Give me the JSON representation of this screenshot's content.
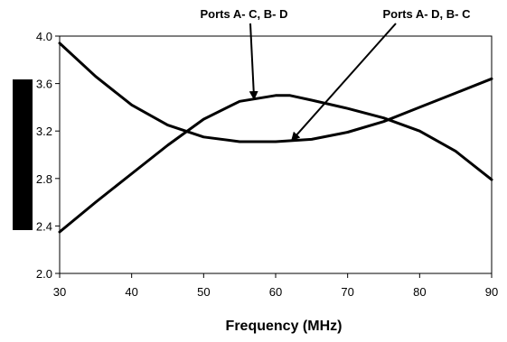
{
  "chart_data": {
    "type": "line",
    "title": "",
    "xlabel": "Frequency (MHz)",
    "ylabel": "",
    "xlim": [
      30,
      90
    ],
    "ylim": [
      2.0,
      4.0
    ],
    "x_ticks": [
      "30",
      "40",
      "50",
      "60",
      "70",
      "80",
      "90"
    ],
    "y_ticks": [
      "2.0",
      "2.4",
      "2.8",
      "3.2",
      "3.6",
      "4.0"
    ],
    "grid": false,
    "legend": "none",
    "series": [
      {
        "name": "Ports A- C, B- D",
        "x": [
          30,
          35,
          40,
          45,
          50,
          55,
          60,
          62,
          65,
          70,
          75,
          80,
          85,
          90
        ],
        "y": [
          2.35,
          2.6,
          2.84,
          3.08,
          3.3,
          3.45,
          3.5,
          3.5,
          3.46,
          3.39,
          3.31,
          3.2,
          3.03,
          2.79
        ]
      },
      {
        "name": "Ports A- D, B- C",
        "x": [
          30,
          35,
          40,
          45,
          50,
          55,
          60,
          65,
          70,
          75,
          80,
          85,
          90
        ],
        "y": [
          3.94,
          3.66,
          3.42,
          3.25,
          3.15,
          3.11,
          3.11,
          3.13,
          3.19,
          3.28,
          3.4,
          3.52,
          3.64
        ]
      }
    ],
    "annotations": [
      {
        "text": "Ports A- C, B- D",
        "x": 57,
        "y": 3.46
      },
      {
        "text": "Ports A- D, B- C",
        "x": 62.3,
        "y": 3.11
      }
    ],
    "colors": {
      "line": "#000000",
      "axis": "#000000",
      "side_bar": "#000000"
    }
  }
}
